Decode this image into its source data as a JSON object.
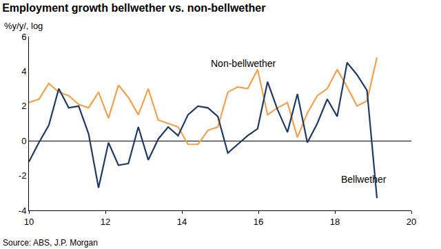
{
  "chart_data": {
    "type": "line",
    "title": "Employment growth bellwether vs. non-bellwether",
    "y_label": "%y/y/, log",
    "source": "Source: ABS, J.P. Morgan",
    "x": [
      10.0,
      10.26,
      10.52,
      10.78,
      11.04,
      11.3,
      11.56,
      11.82,
      12.08,
      12.34,
      12.6,
      12.86,
      13.12,
      13.38,
      13.64,
      13.9,
      14.16,
      14.42,
      14.68,
      14.94,
      15.2,
      15.46,
      15.72,
      15.98,
      16.24,
      16.5,
      16.76,
      17.02,
      17.28,
      17.54,
      17.8,
      18.06,
      18.32,
      18.58,
      18.84,
      19.1
    ],
    "series": [
      {
        "name": "Non-bellwether",
        "color": "#F5A04A",
        "values": [
          2.2,
          2.4,
          3.3,
          2.8,
          2.6,
          2.1,
          1.9,
          2.8,
          1.3,
          3.2,
          2.5,
          1.5,
          3.0,
          1.2,
          1.0,
          0.8,
          -0.2,
          -0.2,
          0.6,
          0.8,
          2.8,
          3.1,
          3.0,
          4.1,
          1.5,
          1.9,
          2.2,
          0.2,
          1.6,
          2.6,
          3.0,
          4.1,
          3.1,
          2.0,
          2.3,
          4.8
        ]
      },
      {
        "name": "Bellwether",
        "color": "#1F3A68",
        "values": [
          -1.2,
          -0.1,
          0.9,
          3.0,
          1.9,
          2.0,
          0.4,
          -2.7,
          -0.1,
          -1.4,
          -1.3,
          0.8,
          -1.1,
          0.1,
          0.8,
          0.3,
          1.5,
          2.0,
          1.9,
          1.4,
          -0.7,
          -0.2,
          0.3,
          0.7,
          3.4,
          1.8,
          0.5,
          2.7,
          -0.1,
          1.0,
          2.4,
          1.4,
          4.5,
          3.8,
          2.9,
          -3.3
        ]
      }
    ],
    "xlim": [
      10,
      20
    ],
    "xticks": [
      10,
      12,
      14,
      16,
      18,
      20
    ],
    "ylim": [
      -4,
      6
    ],
    "yticks": [
      -4,
      -2,
      0,
      2,
      4,
      6
    ],
    "grid": false
  }
}
